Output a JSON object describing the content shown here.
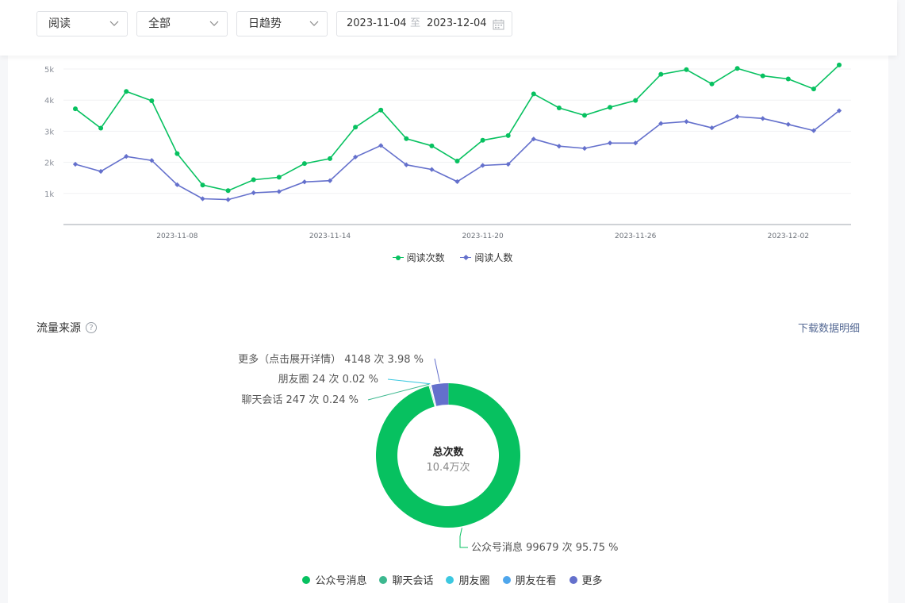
{
  "filters": {
    "type_select": "阅读",
    "scope_select": "全部",
    "trend_select": "日趋势",
    "date_start": "2023-11-04",
    "date_sep": "至",
    "date_end": "2023-12-04"
  },
  "chart_data": [
    {
      "type": "line",
      "x": [
        "2023-11-04",
        "2023-11-05",
        "2023-11-06",
        "2023-11-07",
        "2023-11-08",
        "2023-11-09",
        "2023-11-10",
        "2023-11-11",
        "2023-11-12",
        "2023-11-13",
        "2023-11-14",
        "2023-11-15",
        "2023-11-16",
        "2023-11-17",
        "2023-11-18",
        "2023-11-19",
        "2023-11-20",
        "2023-11-21",
        "2023-11-22",
        "2023-11-23",
        "2023-11-24",
        "2023-11-25",
        "2023-11-26",
        "2023-11-27",
        "2023-11-28",
        "2023-11-29",
        "2023-11-30",
        "2023-12-01",
        "2023-12-02",
        "2023-12-03",
        "2023-12-04"
      ],
      "x_ticks": [
        "2023-11-08",
        "2023-11-14",
        "2023-11-20",
        "2023-11-26",
        "2023-12-02"
      ],
      "y_ticks": [
        "1k",
        "2k",
        "3k",
        "4k",
        "5k"
      ],
      "ylim": [
        0,
        5000
      ],
      "grid": true,
      "legend": "bottom",
      "series": [
        {
          "name": "阅读次数",
          "color": "#07c160",
          "values": [
            3720,
            3100,
            4280,
            3980,
            2280,
            1270,
            1090,
            1440,
            1520,
            1960,
            2120,
            3130,
            3680,
            2760,
            2530,
            2040,
            2710,
            2860,
            4200,
            3750,
            3510,
            3770,
            3990,
            4830,
            4980,
            4520,
            5020,
            4780,
            4680,
            4360,
            5130
          ]
        },
        {
          "name": "阅读人数",
          "color": "#6470cc",
          "values": [
            1940,
            1710,
            2190,
            2060,
            1280,
            830,
            800,
            1020,
            1060,
            1370,
            1410,
            2170,
            2540,
            1920,
            1770,
            1380,
            1900,
            1940,
            2750,
            2520,
            2450,
            2620,
            2620,
            3250,
            3310,
            3110,
            3470,
            3410,
            3220,
            3020,
            3660
          ]
        }
      ]
    },
    {
      "type": "pie",
      "title": "总次数",
      "center_value": "10.4万次",
      "series": [
        {
          "name": "公众号消息",
          "value": 99679,
          "percent": 95.75,
          "color": "#07c160",
          "label": "公众号消息 99679 次 95.75 %"
        },
        {
          "name": "聊天会话",
          "value": 247,
          "percent": 0.24,
          "color": "#3cb88f",
          "label": "聊天会话 247 次 0.24 %"
        },
        {
          "name": "朋友圈",
          "value": 24,
          "percent": 0.02,
          "color": "#3cc8e0",
          "label": "朋友圈 24 次 0.02 %"
        },
        {
          "name": "朋友在看",
          "value": 0,
          "percent": 0,
          "color": "#4fa6ec",
          "label": ""
        },
        {
          "name": "更多",
          "value": 4148,
          "percent": 3.98,
          "color": "#6470cc",
          "label": "更多（点击展开详情） 4148 次 3.98 %"
        }
      ]
    }
  ],
  "section": {
    "title": "流量来源",
    "help": "?",
    "download": "下载数据明细"
  },
  "colors": {
    "accent": "#07c160",
    "secondary": "#6470cc",
    "link": "#576b95"
  },
  "icons": {
    "chevron": "chevron-down-icon",
    "calendar": "calendar-icon",
    "help": "help-icon"
  }
}
